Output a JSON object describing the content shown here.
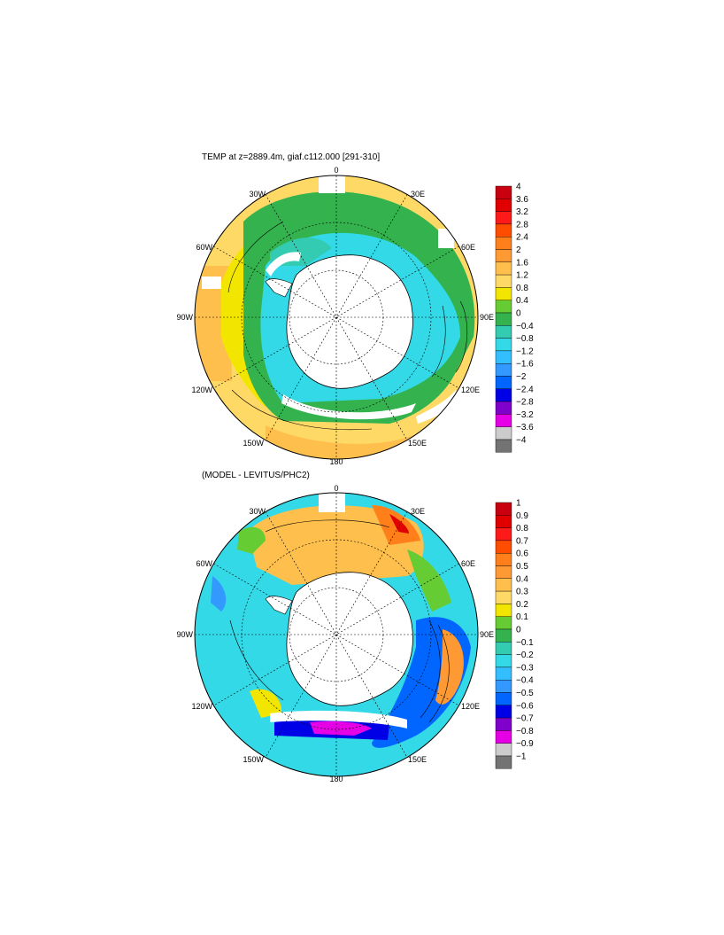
{
  "panels": [
    {
      "title": "TEMP at z=2889.4m, giaf.c112.000 [291-310]",
      "longitude_labels": {
        "top": "0",
        "p30e": "30E",
        "p60e": "60E",
        "p90e": "90E",
        "p120e": "120E",
        "p150e": "150E",
        "bottom": "180",
        "p150w": "150W",
        "p120w": "120W",
        "p90w": "90W",
        "p60w": "60W",
        "p30w": "30W"
      },
      "colorbar": {
        "labels": [
          "4",
          "3.6",
          "3.2",
          "2.8",
          "2.4",
          "2",
          "1.6",
          "1.2",
          "0.8",
          "0.4",
          "0",
          "−0.4",
          "−0.8",
          "−1.2",
          "−1.6",
          "−2",
          "−2.4",
          "−2.8",
          "−3.2",
          "−3.6",
          "−4"
        ],
        "colors": [
          "#c8000f",
          "#e00000",
          "#ff1a1a",
          "#ff4d00",
          "#ff7f1a",
          "#ff9933",
          "#ffbf4d",
          "#ffd966",
          "#f2e600",
          "#66cc33",
          "#33b24d",
          "#33ccb2",
          "#33d9e6",
          "#33bfff",
          "#3399ff",
          "#0066ff",
          "#0000e6",
          "#8000cc",
          "#e600e6",
          "#cccccc",
          "#737373"
        ]
      }
    },
    {
      "title": "(MODEL - LEVITUS/PHC2)",
      "longitude_labels": {
        "top": "0",
        "p30e": "30E",
        "p60e": "60E",
        "p90e": "90E",
        "p120e": "120E",
        "p150e": "150E",
        "bottom": "180",
        "p150w": "150W",
        "p120w": "120W",
        "p90w": "90W",
        "p60w": "60W",
        "p30w": "30W"
      },
      "colorbar": {
        "labels": [
          "1",
          "0.9",
          "0.8",
          "0.7",
          "0.6",
          "0.5",
          "0.4",
          "0.3",
          "0.2",
          "0.1",
          "0",
          "−0.1",
          "−0.2",
          "−0.3",
          "−0.4",
          "−0.5",
          "−0.6",
          "−0.7",
          "−0.8",
          "−0.9",
          "−1"
        ],
        "colors": [
          "#c8000f",
          "#e00000",
          "#ff1a1a",
          "#ff4d00",
          "#ff7f1a",
          "#ff9933",
          "#ffbf4d",
          "#ffd966",
          "#f2e600",
          "#66cc33",
          "#33b24d",
          "#33ccb2",
          "#33d9e6",
          "#33bfff",
          "#3399ff",
          "#0066ff",
          "#0000e6",
          "#8000cc",
          "#e600e6",
          "#cccccc",
          "#737373"
        ]
      }
    }
  ]
}
